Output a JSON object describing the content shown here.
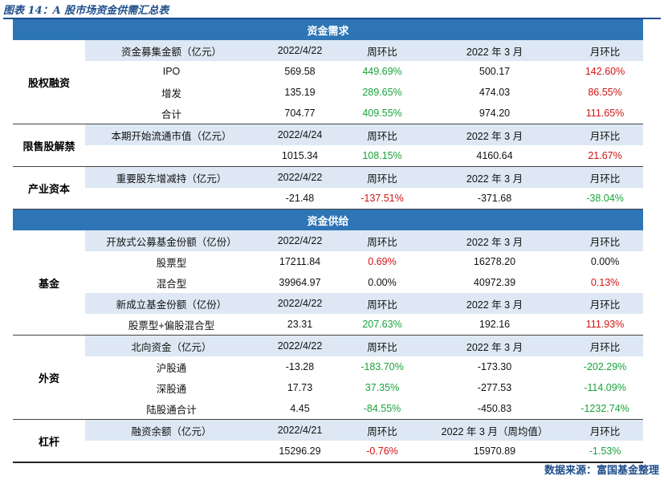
{
  "title": "图表 14：A 股市场资金供需汇总表",
  "source": "数据来源：富国基金整理",
  "colors": {
    "green": "#1aa33a",
    "red": "#d01414",
    "header_bg": "#2e75b6",
    "subheader_bg": "#dde8f4"
  },
  "sections": [
    {
      "title": "资金需求",
      "groups": [
        {
          "name": "股权融资",
          "rows": [
            {
              "type": "header",
              "cells": [
                "资金募集金额（亿元）",
                "2022/4/22",
                "周环比",
                "2022 年 3 月",
                "月环比"
              ]
            },
            {
              "type": "data",
              "cells": [
                "IPO",
                "569.58",
                "449.69%",
                "500.17",
                "142.60%"
              ],
              "colors": [
                "",
                "",
                "green",
                "",
                "red"
              ]
            },
            {
              "type": "data",
              "cells": [
                "增发",
                "135.19",
                "289.65%",
                "474.03",
                "86.55%"
              ],
              "colors": [
                "",
                "",
                "green",
                "",
                "red"
              ]
            },
            {
              "type": "data",
              "cells": [
                "合计",
                "704.77",
                "409.55%",
                "974.20",
                "111.65%"
              ],
              "colors": [
                "",
                "",
                "green",
                "",
                "red"
              ]
            }
          ]
        },
        {
          "name": "限售股解禁",
          "rows": [
            {
              "type": "header",
              "cells": [
                "本期开始流通市值（亿元）",
                "2022/4/24",
                "周环比",
                "2022 年 3 月",
                "月环比"
              ]
            },
            {
              "type": "data",
              "cells": [
                "",
                "1015.34",
                "108.15%",
                "4160.64",
                "21.67%"
              ],
              "colors": [
                "",
                "",
                "green",
                "",
                "red"
              ]
            }
          ]
        },
        {
          "name": "产业资本",
          "rows": [
            {
              "type": "header",
              "cells": [
                "重要股东增减持（亿元）",
                "2022/4/22",
                "周环比",
                "2022 年 3 月",
                "月环比"
              ]
            },
            {
              "type": "data",
              "cells": [
                "",
                "-21.48",
                "-137.51%",
                "-371.68",
                "-38.04%"
              ],
              "colors": [
                "",
                "",
                "red",
                "",
                "green"
              ]
            }
          ]
        }
      ]
    },
    {
      "title": "资金供给",
      "groups": [
        {
          "name": "基金",
          "rows": [
            {
              "type": "header",
              "cells": [
                "开放式公募基金份额（亿份）",
                "2022/4/22",
                "周环比",
                "2022 年 3 月",
                "月环比"
              ]
            },
            {
              "type": "data",
              "cells": [
                "股票型",
                "17211.84",
                "0.69%",
                "16278.20",
                "0.00%"
              ],
              "colors": [
                "",
                "",
                "red",
                "",
                ""
              ]
            },
            {
              "type": "data",
              "cells": [
                "混合型",
                "39964.97",
                "0.00%",
                "40972.39",
                "0.13%"
              ],
              "colors": [
                "",
                "",
                "",
                "",
                "red"
              ]
            },
            {
              "type": "header",
              "cells": [
                "新成立基金份额（亿份）",
                "2022/4/22",
                "周环比",
                "2022 年 3 月",
                "月环比"
              ]
            },
            {
              "type": "data",
              "cells": [
                "股票型+偏股混合型",
                "23.31",
                "207.63%",
                "192.16",
                "111.93%"
              ],
              "colors": [
                "",
                "",
                "green",
                "",
                "red"
              ]
            }
          ]
        },
        {
          "name": "外资",
          "rows": [
            {
              "type": "header",
              "cells": [
                "北向资金（亿元）",
                "2022/4/22",
                "周环比",
                "2022 年 3 月",
                "月环比"
              ]
            },
            {
              "type": "data",
              "cells": [
                "沪股通",
                "-13.28",
                "-183.70%",
                "-173.30",
                "-202.29%"
              ],
              "colors": [
                "",
                "",
                "green",
                "",
                "green"
              ]
            },
            {
              "type": "data",
              "cells": [
                "深股通",
                "17.73",
                "37.35%",
                "-277.53",
                "-114.09%"
              ],
              "colors": [
                "",
                "",
                "green",
                "",
                "green"
              ]
            },
            {
              "type": "data",
              "cells": [
                "陆股通合计",
                "4.45",
                "-84.55%",
                "-450.83",
                "-1232.74%"
              ],
              "colors": [
                "",
                "",
                "green",
                "",
                "green"
              ]
            }
          ]
        },
        {
          "name": "杠杆",
          "rows": [
            {
              "type": "header",
              "cells": [
                "融资余额（亿元）",
                "2022/4/21",
                "周环比",
                "2022 年 3 月（周均值）",
                "月环比"
              ]
            },
            {
              "type": "data",
              "cells": [
                "",
                "15296.29",
                "-0.76%",
                "15970.89",
                "-1.53%"
              ],
              "colors": [
                "",
                "",
                "red",
                "",
                "green"
              ]
            }
          ]
        }
      ]
    }
  ]
}
